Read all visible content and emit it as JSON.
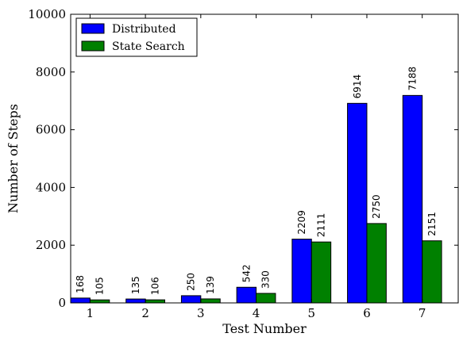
{
  "chart_data": {
    "type": "bar",
    "categories": [
      "1",
      "2",
      "3",
      "4",
      "5",
      "6",
      "7"
    ],
    "series": [
      {
        "name": "Distributed",
        "values": [
          168,
          135,
          250,
          542,
          2209,
          6914,
          7188
        ],
        "color": "#0000ff"
      },
      {
        "name": "State Search",
        "values": [
          105,
          106,
          139,
          330,
          2111,
          2750,
          2151
        ],
        "color": "#008000"
      }
    ],
    "value_labels": [
      [
        "168",
        "135",
        "250",
        "542",
        "2209",
        "6914",
        "7188"
      ],
      [
        "105",
        "106",
        "139",
        "330",
        "2111",
        "2750",
        "2151"
      ]
    ],
    "xlabel": "Test Number",
    "ylabel": "Number of Steps",
    "ylim": [
      0,
      10000
    ],
    "yticks": [
      0,
      2000,
      4000,
      6000,
      8000,
      10000
    ],
    "ytick_labels": [
      "0",
      "2000",
      "4000",
      "6000",
      "8000",
      "10000"
    ],
    "grid": false,
    "legend_position": "top-left"
  }
}
